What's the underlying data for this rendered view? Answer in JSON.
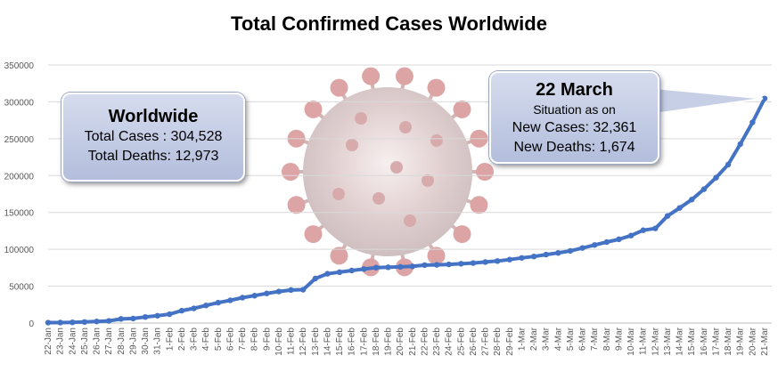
{
  "chart_data": {
    "type": "line",
    "title": "Total Confirmed Cases Worldwide",
    "xlabel": "",
    "ylabel": "",
    "ylim": [
      0,
      350000
    ],
    "yticks": [
      0,
      50000,
      100000,
      150000,
      200000,
      250000,
      300000,
      350000
    ],
    "grid": true,
    "line_color": "#4472C4",
    "categories": [
      "22-Jan",
      "23-Jan",
      "24-Jan",
      "25-Jan",
      "26-Jan",
      "27-Jan",
      "28-Jan",
      "29-Jan",
      "30-Jan",
      "31-Jan",
      "1-Feb",
      "2-Feb",
      "3-Feb",
      "4-Feb",
      "5-Feb",
      "6-Feb",
      "7-Feb",
      "8-Feb",
      "9-Feb",
      "10-Feb",
      "11-Feb",
      "12-Feb",
      "13-Feb",
      "14-Feb",
      "15-Feb",
      "16-Feb",
      "17-Feb",
      "18-Feb",
      "19-Feb",
      "20-Feb",
      "21-Feb",
      "22-Feb",
      "23-Feb",
      "24-Feb",
      "25-Feb",
      "26-Feb",
      "27-Feb",
      "28-Feb",
      "29-Feb",
      "1-Mar",
      "2-Mar",
      "3-Mar",
      "4-Mar",
      "5-Mar",
      "6-Mar",
      "7-Mar",
      "8-Mar",
      "9-Mar",
      "10-Mar",
      "11-Mar",
      "12-Mar",
      "13-Mar",
      "14-Mar",
      "15-Mar",
      "16-Mar",
      "17-Mar",
      "18-Mar",
      "19-Mar",
      "20-Mar",
      "21-Mar"
    ],
    "series": [
      {
        "values": [
          555,
          654,
          941,
          1434,
          2118,
          2927,
          5578,
          6166,
          8234,
          9927,
          12038,
          16787,
          19881,
          23892,
          27635,
          30794,
          34391,
          37120,
          40150,
          42762,
          44802,
          45221,
          60368,
          66885,
          69030,
          71224,
          73258,
          75136,
          75639,
          76197,
          76819,
          78572,
          78958,
          79561,
          80406,
          81388,
          82746,
          84112,
          86011,
          88369,
          90306,
          92840,
          95120,
          97886,
          101801,
          105847,
          109821,
          113590,
          118620,
          125875,
          128343,
          145193,
          156097,
          167449,
          181546,
          197168,
          214915,
          242713,
          272167,
          304528
        ]
      }
    ]
  },
  "callouts": {
    "worldwide": {
      "heading": "Worldwide",
      "total_cases": "Total Cases : 304,528",
      "total_deaths": "Total Deaths: 12,973"
    },
    "situation": {
      "date": "22 March",
      "subtitle": "Situation as on",
      "new_cases": "New Cases: 32,361",
      "new_deaths": "New Deaths: 1,674"
    }
  },
  "background_image": "coronavirus-illustration"
}
